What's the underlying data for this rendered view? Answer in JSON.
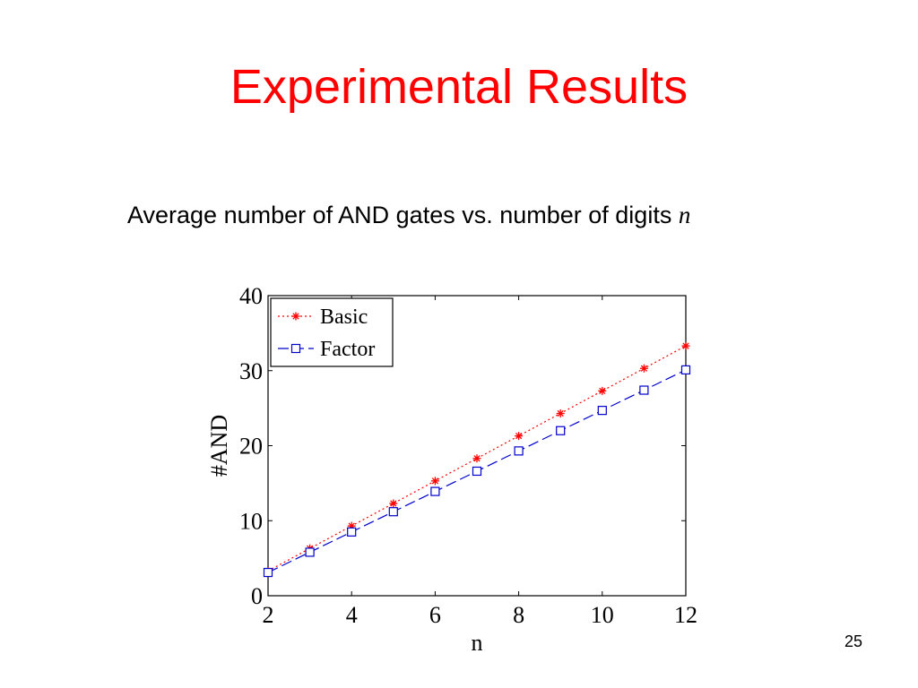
{
  "slide": {
    "title": "Experimental Results",
    "subtitle_text": "Average number of AND gates vs. number of digits",
    "subtitle_var": "n",
    "page_number": "25",
    "title_color": "#ff0000"
  },
  "chart_data": {
    "type": "line",
    "title": "",
    "xlabel": "n",
    "ylabel": "#AND",
    "xlim": [
      2,
      12
    ],
    "ylim": [
      0,
      40
    ],
    "xticks": [
      2,
      4,
      6,
      8,
      10,
      12
    ],
    "yticks": [
      0,
      10,
      20,
      30,
      40
    ],
    "x": [
      2,
      3,
      4,
      5,
      6,
      7,
      8,
      9,
      10,
      11,
      12
    ],
    "grid": false,
    "legend_position": "top-left",
    "series": [
      {
        "name": "Basic",
        "values": [
          3.3,
          6.3,
          9.3,
          12.3,
          15.3,
          18.3,
          21.3,
          24.3,
          27.3,
          30.3,
          33.3
        ],
        "color": "#ff0000",
        "line_style": "dotted",
        "marker": "asterisk"
      },
      {
        "name": "Factor",
        "values": [
          3.1,
          5.8,
          8.5,
          11.2,
          13.9,
          16.6,
          19.3,
          22.0,
          24.7,
          27.4,
          30.1
        ],
        "color": "#0000cc",
        "line_style": "dashed",
        "marker": "square"
      }
    ]
  }
}
